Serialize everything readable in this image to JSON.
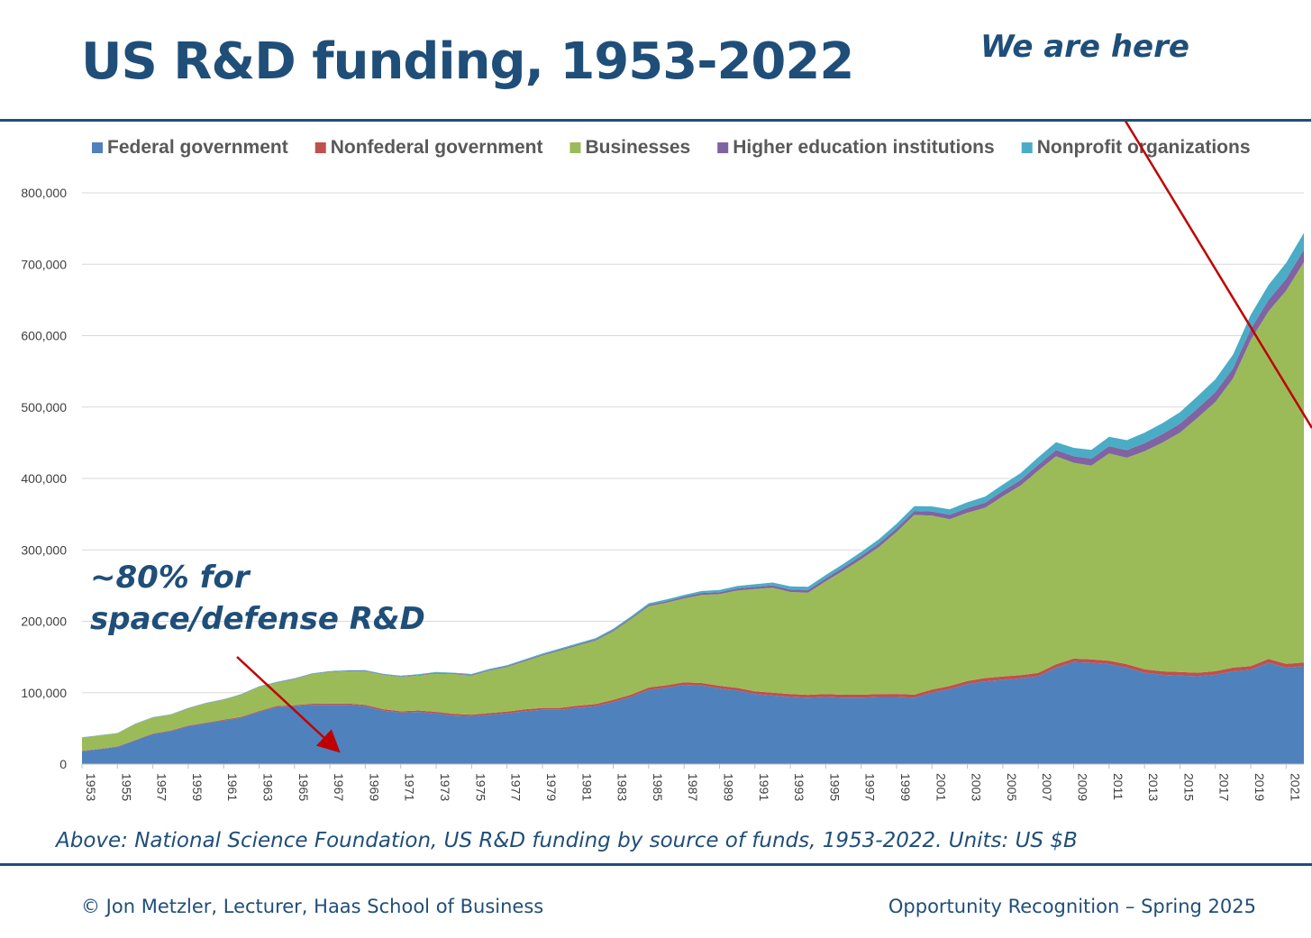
{
  "slide": {
    "title": "US R&D funding, 1953-2022",
    "here_label": "We are here",
    "annotation_line1": "~80% for",
    "annotation_line2": "space/defense R&D",
    "caption": "Above: National Science Foundation, US R&D funding by source of funds, 1953-2022. Units: US $B",
    "footer_left": "© Jon Metzler, Lecturer, Haas School of Business",
    "footer_right": "Opportunity Recognition – Spring 2025",
    "accent_color": "#1f4e79",
    "arrow_color": "#c00000"
  },
  "chart_data": {
    "type": "area",
    "stacked": true,
    "title": "",
    "xlabel": "",
    "ylabel": "",
    "ylim": [
      0,
      800000
    ],
    "yticks": [
      0,
      100000,
      200000,
      300000,
      400000,
      500000,
      600000,
      700000,
      800000
    ],
    "ytick_labels": [
      "0",
      "100,000",
      "200,000",
      "300,000",
      "400,000",
      "500,000",
      "600,000",
      "700,000",
      "800,000"
    ],
    "xtick_labels": [
      "1953",
      "1955",
      "1957",
      "1959",
      "1961",
      "1963",
      "1965",
      "1967",
      "1969",
      "1971",
      "1973",
      "1975",
      "1977",
      "1979",
      "1981",
      "1983",
      "1985",
      "1987",
      "1989",
      "1991",
      "1993",
      "1995",
      "1997",
      "1999",
      "2001",
      "2003",
      "2005",
      "2007",
      "2009",
      "2011",
      "2013",
      "2015",
      "2017",
      "2019",
      "2021"
    ],
    "grid": true,
    "legend_position": "top",
    "x": [
      1953,
      1954,
      1955,
      1956,
      1957,
      1958,
      1959,
      1960,
      1961,
      1962,
      1963,
      1964,
      1965,
      1966,
      1967,
      1968,
      1969,
      1970,
      1971,
      1972,
      1973,
      1974,
      1975,
      1976,
      1977,
      1978,
      1979,
      1980,
      1981,
      1982,
      1983,
      1984,
      1985,
      1986,
      1987,
      1988,
      1989,
      1990,
      1991,
      1992,
      1993,
      1994,
      1995,
      1996,
      1997,
      1998,
      1999,
      2000,
      2001,
      2002,
      2003,
      2004,
      2005,
      2006,
      2007,
      2008,
      2009,
      2010,
      2011,
      2012,
      2013,
      2014,
      2015,
      2016,
      2017,
      2018,
      2019,
      2020,
      2021,
      2022
    ],
    "series": [
      {
        "name": "Federal government",
        "color": "#4f81bd",
        "values": [
          18000,
          21000,
          24000,
          33000,
          42000,
          46000,
          53000,
          57000,
          61000,
          65000,
          73000,
          80000,
          81000,
          83000,
          83000,
          83000,
          81000,
          75000,
          72000,
          73000,
          71000,
          68000,
          67000,
          69000,
          71000,
          74000,
          76000,
          76000,
          79000,
          81000,
          87000,
          94000,
          104000,
          107000,
          111000,
          110000,
          106000,
          103000,
          98000,
          96000,
          94000,
          93000,
          94000,
          93000,
          93000,
          94000,
          94000,
          93000,
          100000,
          105000,
          112000,
          116000,
          118000,
          120000,
          123000,
          135000,
          143000,
          142000,
          140000,
          135000,
          128000,
          125000,
          124000,
          123000,
          125000,
          130000,
          132000,
          142000,
          135000,
          137000
        ]
      },
      {
        "name": "Nonfederal government",
        "color": "#c0504d",
        "values": [
          500,
          500,
          600,
          700,
          800,
          900,
          1000,
          1000,
          1100,
          1200,
          1300,
          1400,
          1500,
          1600,
          1700,
          1800,
          1900,
          2000,
          2000,
          2100,
          2200,
          2300,
          2300,
          2400,
          2500,
          2600,
          2700,
          2800,
          2900,
          3000,
          3100,
          3200,
          3300,
          3400,
          3500,
          3600,
          3700,
          3800,
          3900,
          4000,
          4000,
          4000,
          4100,
          4100,
          4200,
          4200,
          4300,
          4300,
          4400,
          4400,
          4500,
          4500,
          4600,
          4600,
          4700,
          4700,
          4800,
          4800,
          4800,
          4900,
          4900,
          5000,
          5000,
          5000,
          5100,
          5100,
          5200,
          5200,
          5300,
          5300
        ]
      },
      {
        "name": "Businesses",
        "color": "#9bbb59",
        "values": [
          18500,
          18500,
          18400,
          22300,
          22200,
          22100,
          24000,
          27000,
          27900,
          30800,
          33700,
          32600,
          36500,
          41400,
          44300,
          45200,
          47100,
          48000,
          48000,
          48900,
          53800,
          55700,
          54700,
          59600,
          62500,
          67400,
          73300,
          80200,
          84100,
          89000,
          95900,
          105800,
          113700,
          115600,
          117500,
          123400,
          128300,
          136200,
          143100,
          147000,
          143000,
          143000,
          157900,
          173900,
          189800,
          205800,
          226700,
          251700,
          243600,
          233600,
          235500,
          238500,
          252400,
          265400,
          283300,
          291300,
          274200,
          271200,
          290200,
          289100,
          305100,
          320000,
          335000,
          357000,
          376900,
          404900,
          456800,
          486800,
          522700,
          560700
        ]
      },
      {
        "name": "Higher education institutions",
        "color": "#8064a2",
        "values": [
          200,
          200,
          200,
          300,
          300,
          300,
          300,
          300,
          400,
          400,
          400,
          400,
          500,
          500,
          600,
          600,
          700,
          700,
          800,
          800,
          900,
          900,
          1000,
          1000,
          1100,
          1200,
          1300,
          1400,
          1500,
          1600,
          1700,
          1800,
          2000,
          2200,
          2400,
          2600,
          2800,
          3000,
          3200,
          3400,
          3600,
          3800,
          4000,
          4300,
          4600,
          4900,
          5200,
          5500,
          5800,
          6200,
          6600,
          7000,
          7400,
          7800,
          8300,
          8800,
          9300,
          9800,
          10300,
          10800,
          11400,
          12000,
          12600,
          13200,
          13800,
          14500,
          15200,
          15900,
          16600,
          17400
        ]
      },
      {
        "name": "Nonprofit organizations",
        "color": "#4bacc6",
        "values": [
          300,
          300,
          300,
          400,
          400,
          400,
          500,
          500,
          500,
          600,
          600,
          700,
          700,
          700,
          800,
          800,
          900,
          900,
          1000,
          1000,
          1100,
          1100,
          1200,
          1200,
          1300,
          1400,
          1500,
          1600,
          1700,
          1800,
          1900,
          2000,
          2200,
          2400,
          2600,
          2800,
          3000,
          3300,
          3600,
          3900,
          4200,
          4500,
          4800,
          5100,
          5500,
          5900,
          6300,
          6700,
          7100,
          7600,
          8100,
          8600,
          9100,
          9700,
          10300,
          10900,
          11600,
          12300,
          13000,
          13800,
          14600,
          15400,
          16200,
          17100,
          18000,
          19000,
          20000,
          21100,
          22200,
          23400
        ]
      }
    ]
  }
}
